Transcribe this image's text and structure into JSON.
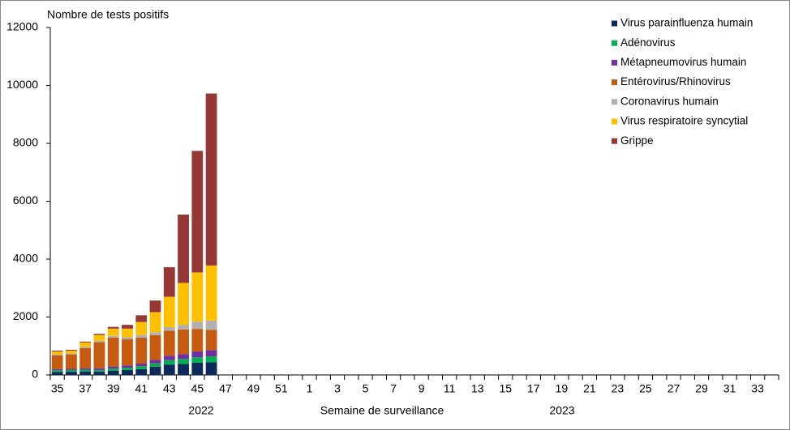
{
  "chart_data": {
    "type": "stacked_bar",
    "y_label": "Nombre de tests positifs",
    "x_label": "Semaine de surveillance",
    "year_labels": [
      "2022",
      "2023"
    ],
    "categories": [
      "35",
      null,
      "37",
      null,
      "39",
      null,
      "41",
      null,
      "43",
      null,
      "45",
      null,
      "47",
      null,
      "49",
      null,
      "51",
      null,
      "1",
      null,
      "3",
      null,
      "5",
      null,
      "7",
      null,
      "9",
      null,
      "11",
      null,
      "13",
      null,
      "15",
      null,
      "17",
      null,
      "19",
      null,
      "21",
      null,
      "23",
      null,
      "25",
      null,
      "27",
      null,
      "29",
      null,
      "31",
      null,
      "33",
      null
    ],
    "ylim": [
      0,
      12000
    ],
    "yticks": [
      0,
      2000,
      4000,
      6000,
      8000,
      10000,
      12000
    ],
    "legend": "top-right",
    "series": [
      {
        "name": "Virus parainfluenza humain",
        "color": "#0d2a5c",
        "values": [
          100,
          110,
          120,
          110,
          150,
          170,
          200,
          280,
          360,
          380,
          420,
          440,
          null,
          null,
          null,
          null,
          null,
          null,
          null,
          null,
          null,
          null,
          null,
          null,
          null,
          null,
          null,
          null,
          null,
          null,
          null,
          null,
          null,
          null,
          null,
          null,
          null,
          null,
          null,
          null,
          null,
          null,
          null,
          null,
          null,
          null,
          null,
          null,
          null,
          null,
          null,
          null
        ]
      },
      {
        "name": "Adénovirus",
        "color": "#00b050",
        "values": [
          60,
          60,
          60,
          60,
          70,
          80,
          100,
          120,
          150,
          170,
          190,
          200,
          null,
          null,
          null,
          null,
          null,
          null,
          null,
          null,
          null,
          null,
          null,
          null,
          null,
          null,
          null,
          null,
          null,
          null,
          null,
          null,
          null,
          null,
          null,
          null,
          null,
          null,
          null,
          null,
          null,
          null,
          null,
          null,
          null,
          null,
          null,
          null,
          null,
          null,
          null,
          null
        ]
      },
      {
        "name": "Métapneumovirus humain",
        "color": "#7030a0",
        "values": [
          40,
          40,
          50,
          60,
          70,
          80,
          90,
          120,
          150,
          170,
          200,
          220,
          null,
          null,
          null,
          null,
          null,
          null,
          null,
          null,
          null,
          null,
          null,
          null,
          null,
          null,
          null,
          null,
          null,
          null,
          null,
          null,
          null,
          null,
          null,
          null,
          null,
          null,
          null,
          null,
          null,
          null,
          null,
          null,
          null,
          null,
          null,
          null,
          null,
          null,
          null,
          null
        ]
      },
      {
        "name": "Entérovirus/Rhinovirus",
        "color": "#c55a11",
        "values": [
          480,
          500,
          700,
          900,
          1000,
          900,
          900,
          850,
          870,
          850,
          780,
          700,
          null,
          null,
          null,
          null,
          null,
          null,
          null,
          null,
          null,
          null,
          null,
          null,
          null,
          null,
          null,
          null,
          null,
          null,
          null,
          null,
          null,
          null,
          null,
          null,
          null,
          null,
          null,
          null,
          null,
          null,
          null,
          null,
          null,
          null,
          null,
          null,
          null,
          null,
          null,
          null
        ]
      },
      {
        "name": "Coronavirus humain",
        "color": "#b0b0b0",
        "values": [
          30,
          30,
          40,
          50,
          60,
          70,
          90,
          100,
          120,
          160,
          250,
          320,
          null,
          null,
          null,
          null,
          null,
          null,
          null,
          null,
          null,
          null,
          null,
          null,
          null,
          null,
          null,
          null,
          null,
          null,
          null,
          null,
          null,
          null,
          null,
          null,
          null,
          null,
          null,
          null,
          null,
          null,
          null,
          null,
          null,
          null,
          null,
          null,
          null,
          null,
          null,
          null
        ]
      },
      {
        "name": "Virus respiratoire syncytial",
        "color": "#ffc000",
        "values": [
          100,
          100,
          150,
          200,
          250,
          300,
          450,
          700,
          1050,
          1450,
          1700,
          1900,
          null,
          null,
          null,
          null,
          null,
          null,
          null,
          null,
          null,
          null,
          null,
          null,
          null,
          null,
          null,
          null,
          null,
          null,
          null,
          null,
          null,
          null,
          null,
          null,
          null,
          null,
          null,
          null,
          null,
          null,
          null,
          null,
          null,
          null,
          null,
          null,
          null,
          null,
          null,
          null
        ]
      },
      {
        "name": "Grippe",
        "color": "#953735",
        "values": [
          30,
          30,
          30,
          40,
          60,
          130,
          230,
          400,
          1020,
          2360,
          4200,
          5940,
          null,
          null,
          null,
          null,
          null,
          null,
          null,
          null,
          null,
          null,
          null,
          null,
          null,
          null,
          null,
          null,
          null,
          null,
          null,
          null,
          null,
          null,
          null,
          null,
          null,
          null,
          null,
          null,
          null,
          null,
          null,
          null,
          null,
          null,
          null,
          null,
          null,
          null,
          null,
          null
        ]
      }
    ]
  }
}
